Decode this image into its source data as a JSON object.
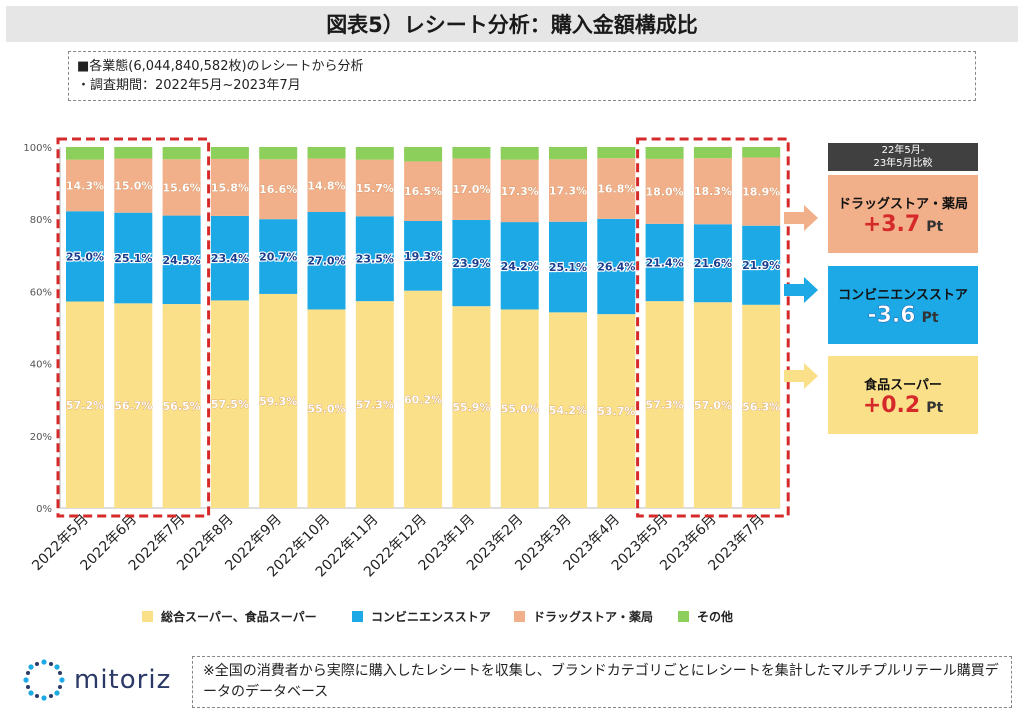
{
  "title": "図表5）レシート分析：購入金額構成比",
  "notes": [
    "■各業態(6,044,840,582枚)のレシートから分析",
    "・調査期間：2022年5月~2023年7月"
  ],
  "colors": {
    "supermarket": "#fbe08a",
    "convenience": "#1ca9e6",
    "drugstore": "#f2b08a",
    "other": "#8ccf5a",
    "highlight": "#d62a2a",
    "positive": "#d62a2a",
    "negative": "#1ca9e6"
  },
  "chart_data": {
    "type": "bar",
    "stacked": true,
    "ylim": [
      0,
      100
    ],
    "yticks": [
      "0%",
      "20%",
      "40%",
      "60%",
      "80%",
      "100%"
    ],
    "categories": [
      "2022年5月",
      "2022年6月",
      "2022年7月",
      "2022年8月",
      "2022年9月",
      "2022年10月",
      "2022年11月",
      "2022年12月",
      "2023年1月",
      "2023年2月",
      "2023年3月",
      "2023年4月",
      "2023年5月",
      "2023年6月",
      "2023年7月"
    ],
    "series": [
      {
        "name": "総合スーパー、食品スーパー",
        "key": "supermarket",
        "values": [
          57.2,
          56.7,
          56.5,
          57.5,
          59.3,
          55.0,
          57.3,
          60.2,
          55.9,
          55.0,
          54.2,
          53.7,
          57.3,
          57.0,
          56.3
        ]
      },
      {
        "name": "コンビニエンスストア",
        "key": "convenience",
        "values": [
          25.0,
          25.1,
          24.5,
          23.4,
          20.7,
          27.0,
          23.5,
          19.3,
          23.9,
          24.2,
          25.1,
          26.4,
          21.4,
          21.6,
          21.9
        ]
      },
      {
        "name": "ドラッグストア・薬局",
        "key": "drugstore",
        "values": [
          14.3,
          15.0,
          15.6,
          15.8,
          16.6,
          14.8,
          15.7,
          16.5,
          17.0,
          17.3,
          17.3,
          16.8,
          18.0,
          18.3,
          18.9
        ]
      },
      {
        "name": "その他",
        "key": "other",
        "values": [
          3.5,
          3.2,
          3.4,
          3.3,
          3.4,
          3.2,
          3.5,
          4.0,
          3.2,
          3.5,
          3.4,
          3.1,
          3.3,
          3.1,
          2.9
        ]
      }
    ],
    "data_labels": {
      "supermarket": [
        "57.2%",
        "56.7%",
        "56.5%",
        "57.5%",
        "59.3%",
        "55.0%",
        "57.3%",
        "60.2%",
        "55.9%",
        "55.0%",
        "54.2%",
        "53.7%",
        "57.3%",
        "57.0%",
        "56.3%"
      ],
      "convenience": [
        "25.0%",
        "25.1%",
        "24.5%",
        "23.4%",
        "20.7%",
        "27.0%",
        "23.5%",
        "19.3%",
        "23.9%",
        "24.2%",
        "25.1%",
        "26.4%",
        "21.4%",
        "21.6%",
        "21.9%"
      ],
      "drugstore": [
        "14.3%",
        "15.0%",
        "15.6%",
        "15.8%",
        "16.6%",
        "14.8%",
        "15.7%",
        "16.5%",
        "17.0%",
        "17.3%",
        "17.3%",
        "16.8%",
        "18.0%",
        "18.3%",
        "18.9%"
      ]
    },
    "highlight_groups": [
      [
        0,
        2
      ],
      [
        12,
        14
      ]
    ]
  },
  "comparison": {
    "header": [
      "22年5月-",
      "23年5月比較"
    ],
    "items": [
      {
        "label": "ドラッグストア・薬局",
        "value": "+3.7",
        "unit": "Pt",
        "key": "drugstore"
      },
      {
        "label": "コンビニエンスストア",
        "value": "-3.6",
        "unit": "Pt",
        "key": "convenience"
      },
      {
        "label": "食品スーパー",
        "value": "+0.2",
        "unit": "Pt",
        "key": "supermarket"
      }
    ]
  },
  "legend": [
    "総合スーパー、食品スーパー",
    "コンビニエンスストア",
    "ドラッグストア・薬局",
    "その他"
  ],
  "footer_note": "※全国の消費者から実際に購入したレシートを収集し、ブランドカテゴリごとにレシートを集計したマルチプルリテール購買データのデータベース",
  "logo_text": "mitoriz"
}
